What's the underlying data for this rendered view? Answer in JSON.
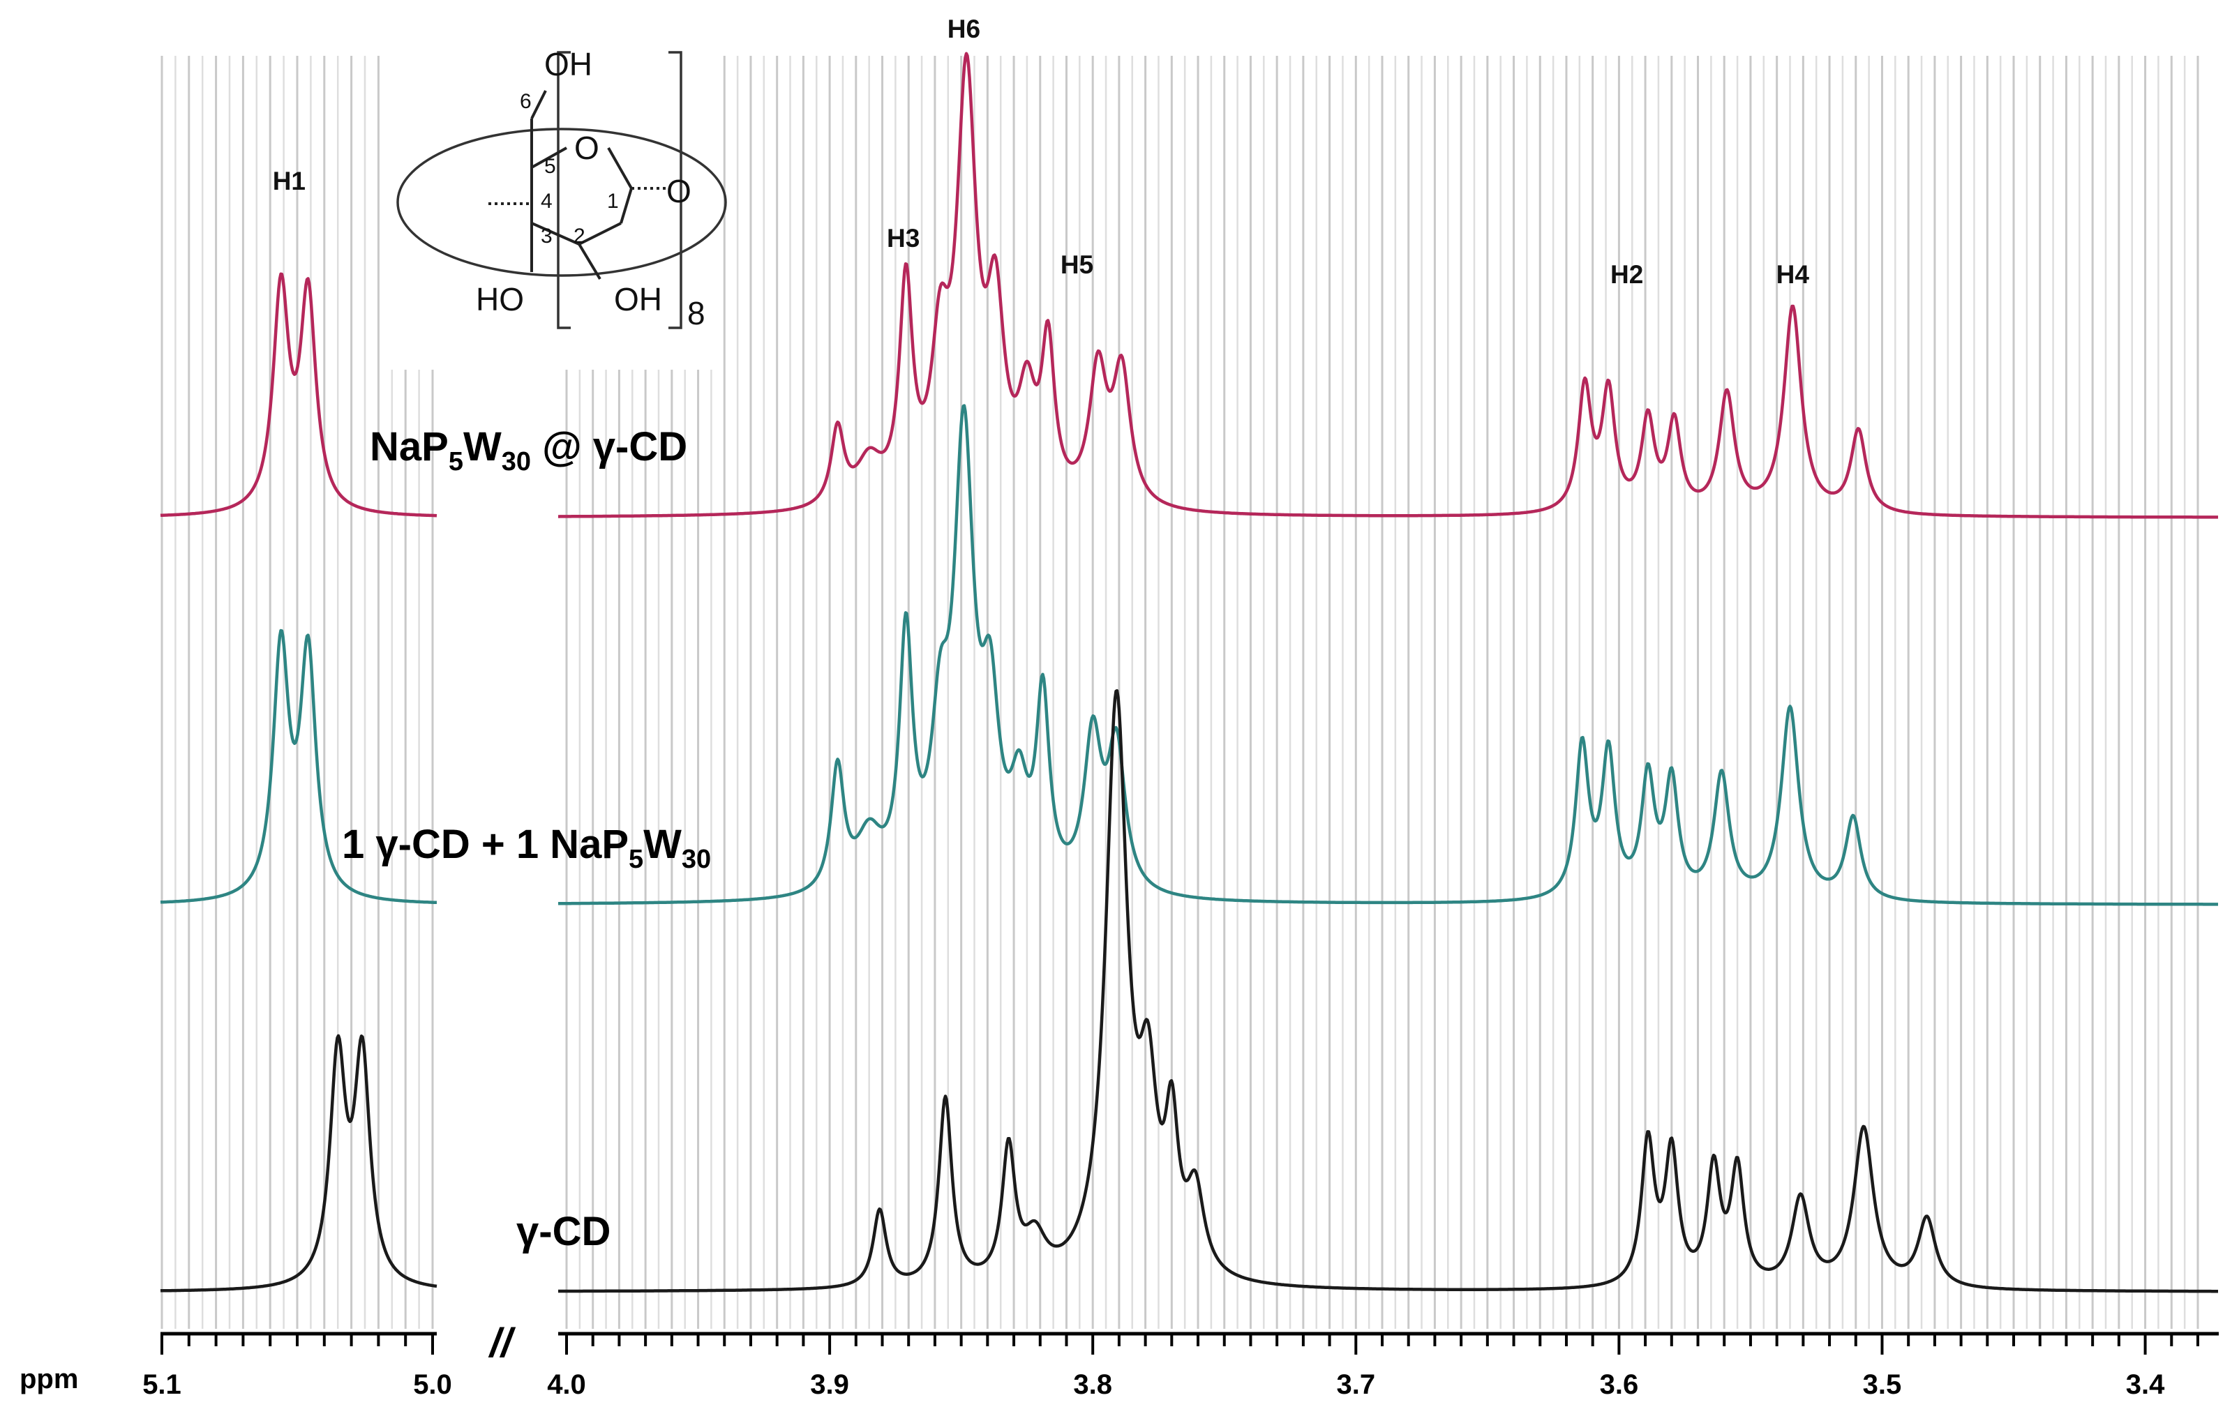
{
  "chart_data": {
    "type": "line",
    "title": "",
    "xlabel": "ppm",
    "ylabel": "",
    "x_reversed": true,
    "axis_break": "//",
    "x_segments": [
      {
        "xlim": [
          5.1,
          5.0
        ],
        "ticks": [
          "5.1",
          "5.0"
        ]
      },
      {
        "xlim": [
          4.0,
          3.38
        ],
        "ticks": [
          "4.0",
          "3.9",
          "3.8",
          "3.7",
          "3.6",
          "3.5",
          "3.4"
        ]
      }
    ],
    "grid": true,
    "peak_labels": [
      {
        "text": "H1",
        "ppm": 5.053
      },
      {
        "text": "H3",
        "ppm": 3.872
      },
      {
        "text": "H6",
        "ppm": 3.849
      },
      {
        "text": "H5",
        "ppm": 3.806
      },
      {
        "text": "H2",
        "ppm": 3.597
      },
      {
        "text": "H4",
        "ppm": 3.534
      }
    ],
    "structure_labels": {
      "oh_top": "OH",
      "ho_left": "HO",
      "oh_right": "OH",
      "ring_o": "O",
      "glyco_o": "O",
      "repeat": "8",
      "c1": "1",
      "c2": "2",
      "c3": "3",
      "c4": "4",
      "c5": "5",
      "c6": "6"
    },
    "series": [
      {
        "name": "NaP5W30 @ γ-CD",
        "label": {
          "main1": "NaP",
          "sub1": "5",
          "main2": "W",
          "sub2": "30",
          "main3": " @ γ-CD"
        },
        "color": "#b5275a",
        "peaks": [
          {
            "ppm": 5.056,
            "height": 0.8,
            "width": 0.0035
          },
          {
            "ppm": 5.046,
            "height": 0.78,
            "width": 0.0035
          },
          {
            "ppm": 3.897,
            "height": 0.28,
            "width": 0.003
          },
          {
            "ppm": 3.885,
            "height": 0.16,
            "width": 0.006
          },
          {
            "ppm": 3.871,
            "height": 0.78,
            "width": 0.003
          },
          {
            "ppm": 3.858,
            "height": 0.5,
            "width": 0.004
          },
          {
            "ppm": 3.848,
            "height": 1.5,
            "width": 0.0045
          },
          {
            "ppm": 3.837,
            "height": 0.65,
            "width": 0.004
          },
          {
            "ppm": 3.825,
            "height": 0.35,
            "width": 0.004
          },
          {
            "ppm": 3.817,
            "height": 0.55,
            "width": 0.003
          },
          {
            "ppm": 3.798,
            "height": 0.48,
            "width": 0.004
          },
          {
            "ppm": 3.789,
            "height": 0.48,
            "width": 0.004
          },
          {
            "ppm": 3.613,
            "height": 0.45,
            "width": 0.003
          },
          {
            "ppm": 3.604,
            "height": 0.43,
            "width": 0.003
          },
          {
            "ppm": 3.589,
            "height": 0.33,
            "width": 0.003
          },
          {
            "ppm": 3.579,
            "height": 0.32,
            "width": 0.003
          },
          {
            "ppm": 3.559,
            "height": 0.43,
            "width": 0.0035
          },
          {
            "ppm": 3.534,
            "height": 0.75,
            "width": 0.004
          },
          {
            "ppm": 3.509,
            "height": 0.3,
            "width": 0.0035
          }
        ]
      },
      {
        "name": "1 γ-CD + 1 NaP5W30",
        "label": {
          "main1": "1 γ-CD + 1 NaP",
          "sub1": "5",
          "main2": "W",
          "sub2": "30",
          "main3": ""
        },
        "color": "#2e8583",
        "peaks": [
          {
            "ppm": 5.056,
            "height": 0.9,
            "width": 0.0035
          },
          {
            "ppm": 5.046,
            "height": 0.88,
            "width": 0.0035
          },
          {
            "ppm": 3.897,
            "height": 0.45,
            "width": 0.003
          },
          {
            "ppm": 3.885,
            "height": 0.2,
            "width": 0.006
          },
          {
            "ppm": 3.871,
            "height": 0.9,
            "width": 0.003
          },
          {
            "ppm": 3.858,
            "height": 0.5,
            "width": 0.004
          },
          {
            "ppm": 3.849,
            "height": 1.6,
            "width": 0.0045
          },
          {
            "ppm": 3.839,
            "height": 0.6,
            "width": 0.004
          },
          {
            "ppm": 3.828,
            "height": 0.32,
            "width": 0.004
          },
          {
            "ppm": 3.819,
            "height": 0.68,
            "width": 0.003
          },
          {
            "ppm": 3.8,
            "height": 0.55,
            "width": 0.004
          },
          {
            "ppm": 3.791,
            "height": 0.52,
            "width": 0.004
          },
          {
            "ppm": 3.614,
            "height": 0.55,
            "width": 0.003
          },
          {
            "ppm": 3.604,
            "height": 0.52,
            "width": 0.003
          },
          {
            "ppm": 3.589,
            "height": 0.43,
            "width": 0.003
          },
          {
            "ppm": 3.58,
            "height": 0.42,
            "width": 0.003
          },
          {
            "ppm": 3.561,
            "height": 0.45,
            "width": 0.0035
          },
          {
            "ppm": 3.535,
            "height": 0.7,
            "width": 0.004
          },
          {
            "ppm": 3.511,
            "height": 0.3,
            "width": 0.0035
          }
        ]
      },
      {
        "name": "γ-CD",
        "label": {
          "main1": "γ-CD",
          "sub1": "",
          "main2": "",
          "sub2": "",
          "main3": ""
        },
        "color": "#1a1a1a",
        "peaks": [
          {
            "ppm": 5.035,
            "height": 0.82,
            "width": 0.0035
          },
          {
            "ppm": 5.026,
            "height": 0.82,
            "width": 0.0035
          },
          {
            "ppm": 3.881,
            "height": 0.28,
            "width": 0.003
          },
          {
            "ppm": 3.856,
            "height": 0.68,
            "width": 0.003
          },
          {
            "ppm": 3.832,
            "height": 0.48,
            "width": 0.003
          },
          {
            "ppm": 3.822,
            "height": 0.15,
            "width": 0.005
          },
          {
            "ppm": 3.791,
            "height": 2.1,
            "width": 0.005
          },
          {
            "ppm": 3.779,
            "height": 0.6,
            "width": 0.004
          },
          {
            "ppm": 3.77,
            "height": 0.5,
            "width": 0.003
          },
          {
            "ppm": 3.761,
            "height": 0.3,
            "width": 0.004
          },
          {
            "ppm": 3.589,
            "height": 0.52,
            "width": 0.003
          },
          {
            "ppm": 3.58,
            "height": 0.48,
            "width": 0.003
          },
          {
            "ppm": 3.564,
            "height": 0.42,
            "width": 0.003
          },
          {
            "ppm": 3.555,
            "height": 0.42,
            "width": 0.003
          },
          {
            "ppm": 3.531,
            "height": 0.32,
            "width": 0.004
          },
          {
            "ppm": 3.507,
            "height": 0.58,
            "width": 0.0045
          },
          {
            "ppm": 3.483,
            "height": 0.25,
            "width": 0.004
          }
        ]
      }
    ]
  }
}
